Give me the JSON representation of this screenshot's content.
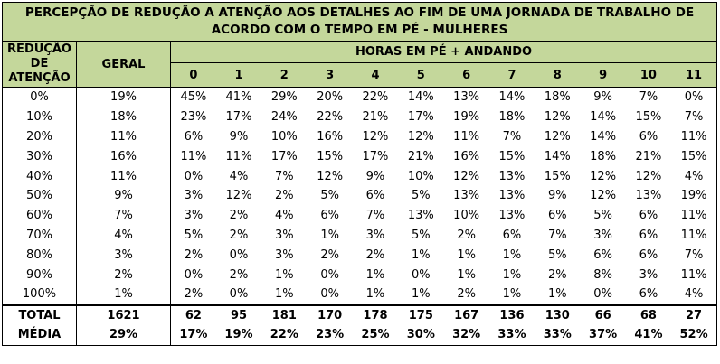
{
  "title_line1": "PERCEPÇÃO DE REDUÇÃO A ATENÇÃO AOS DETALHES AO FIM DE UMA JORNADA DE TRABALHO DE",
  "title_line2": "ACORDO COM O TEMPO EM PÉ - MULHERES",
  "col_reducao": "REDUÇÃO DE ATENÇÃO",
  "col_geral": "GERAL",
  "col_horas": "HORAS EM PÉ + ANDANDO",
  "hours": [
    "0",
    "1",
    "2",
    "3",
    "4",
    "5",
    "6",
    "7",
    "8",
    "9",
    "10",
    "11"
  ],
  "rows": [
    {
      "label": "0%",
      "geral": "19%",
      "values": [
        "45%",
        "41%",
        "29%",
        "20%",
        "22%",
        "14%",
        "13%",
        "14%",
        "18%",
        "9%",
        "7%",
        "0%"
      ]
    },
    {
      "label": "10%",
      "geral": "18%",
      "values": [
        "23%",
        "17%",
        "24%",
        "22%",
        "21%",
        "17%",
        "19%",
        "18%",
        "12%",
        "14%",
        "15%",
        "7%"
      ]
    },
    {
      "label": "20%",
      "geral": "11%",
      "values": [
        "6%",
        "9%",
        "10%",
        "16%",
        "12%",
        "12%",
        "11%",
        "7%",
        "12%",
        "14%",
        "6%",
        "11%"
      ]
    },
    {
      "label": "30%",
      "geral": "16%",
      "values": [
        "11%",
        "11%",
        "17%",
        "15%",
        "17%",
        "21%",
        "16%",
        "15%",
        "14%",
        "18%",
        "21%",
        "15%"
      ]
    },
    {
      "label": "40%",
      "geral": "11%",
      "values": [
        "0%",
        "4%",
        "7%",
        "12%",
        "9%",
        "10%",
        "12%",
        "13%",
        "15%",
        "12%",
        "12%",
        "4%"
      ]
    },
    {
      "label": "50%",
      "geral": "9%",
      "values": [
        "3%",
        "12%",
        "2%",
        "5%",
        "6%",
        "5%",
        "13%",
        "13%",
        "9%",
        "12%",
        "13%",
        "19%"
      ]
    },
    {
      "label": "60%",
      "geral": "7%",
      "values": [
        "3%",
        "2%",
        "4%",
        "6%",
        "7%",
        "13%",
        "10%",
        "13%",
        "6%",
        "5%",
        "6%",
        "11%"
      ]
    },
    {
      "label": "70%",
      "geral": "4%",
      "values": [
        "5%",
        "2%",
        "3%",
        "1%",
        "3%",
        "5%",
        "2%",
        "6%",
        "7%",
        "3%",
        "6%",
        "11%"
      ]
    },
    {
      "label": "80%",
      "geral": "3%",
      "values": [
        "2%",
        "0%",
        "3%",
        "2%",
        "2%",
        "1%",
        "1%",
        "1%",
        "5%",
        "6%",
        "6%",
        "7%"
      ]
    },
    {
      "label": "90%",
      "geral": "2%",
      "values": [
        "0%",
        "2%",
        "1%",
        "0%",
        "1%",
        "0%",
        "1%",
        "1%",
        "2%",
        "8%",
        "3%",
        "11%"
      ]
    },
    {
      "label": "100%",
      "geral": "1%",
      "values": [
        "2%",
        "0%",
        "1%",
        "0%",
        "1%",
        "1%",
        "2%",
        "1%",
        "1%",
        "0%",
        "6%",
        "4%"
      ]
    }
  ],
  "total": {
    "label": "TOTAL",
    "geral": "1621",
    "values": [
      "62",
      "95",
      "181",
      "170",
      "178",
      "175",
      "167",
      "136",
      "130",
      "66",
      "68",
      "27"
    ]
  },
  "media": {
    "label": "MÉDIA",
    "geral": "29%",
    "values": [
      "17%",
      "19%",
      "22%",
      "23%",
      "25%",
      "30%",
      "32%",
      "33%",
      "33%",
      "37%",
      "41%",
      "52%"
    ]
  },
  "colors": {
    "header_bg": "#c4d79b",
    "border": "#000000"
  }
}
